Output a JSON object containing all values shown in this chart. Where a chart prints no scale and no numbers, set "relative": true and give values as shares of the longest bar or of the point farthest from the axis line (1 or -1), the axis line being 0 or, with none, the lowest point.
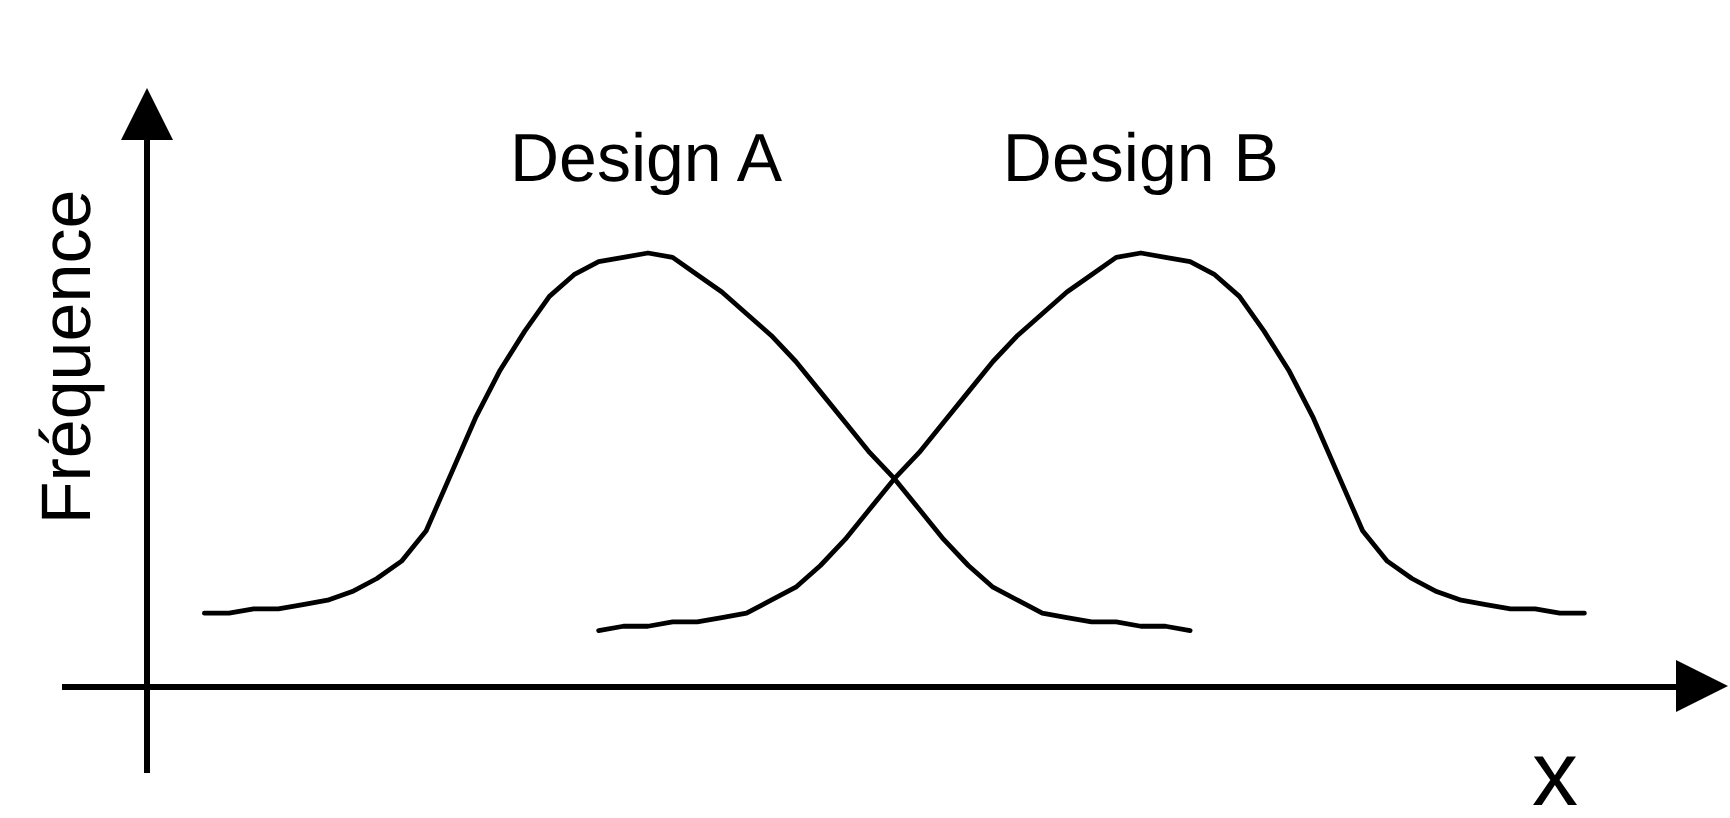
{
  "chart_data": {
    "type": "line",
    "relative": true,
    "tick_labels": false,
    "xlabel": "x",
    "ylabel": "Fréquence",
    "categories": [
      null,
      null,
      null,
      null,
      null,
      null,
      null,
      null,
      null,
      null,
      null,
      null,
      null,
      null,
      null,
      null,
      null,
      null,
      null,
      null,
      null,
      null,
      null,
      null,
      null,
      null,
      null,
      null,
      null,
      null,
      null,
      null,
      null,
      null,
      null,
      null,
      null,
      null,
      null,
      null,
      null,
      null,
      null,
      null,
      null,
      null,
      null,
      null,
      null,
      null,
      null,
      null,
      null,
      null,
      null,
      null,
      null
    ],
    "series": [
      {
        "name": "Design A",
        "color": "#000000",
        "values": [
          0.17,
          0.17,
          0.18,
          0.18,
          0.19,
          0.2,
          0.22,
          0.25,
          0.29,
          0.36,
          0.49,
          0.62,
          0.73,
          0.82,
          0.9,
          0.95,
          0.98,
          0.99,
          1,
          0.99,
          0.95,
          0.91,
          0.86,
          0.81,
          0.75,
          0.68,
          0.61,
          0.54,
          0.48,
          0.41,
          0.34,
          0.28,
          0.23,
          0.2,
          0.17,
          0.16,
          0.15,
          0.15,
          0.14,
          0.14,
          0.13,
          null,
          null,
          null,
          null,
          null,
          null,
          null,
          null,
          null,
          null,
          null,
          null,
          null,
          null,
          null,
          null
        ]
      },
      {
        "name": "Design B",
        "color": "#000000",
        "values": [
          null,
          null,
          null,
          null,
          null,
          null,
          null,
          null,
          null,
          null,
          null,
          null,
          null,
          null,
          null,
          null,
          0.13,
          0.14,
          0.14,
          0.15,
          0.15,
          0.16,
          0.17,
          0.2,
          0.23,
          0.28,
          0.34,
          0.41,
          0.48,
          0.54,
          0.61,
          0.68,
          0.75,
          0.81,
          0.86,
          0.91,
          0.95,
          0.99,
          1,
          0.99,
          0.98,
          0.95,
          0.9,
          0.82,
          0.73,
          0.62,
          0.49,
          0.36,
          0.29,
          0.25,
          0.22,
          0.2,
          0.19,
          0.18,
          0.18,
          0.17,
          0.17
        ]
      }
    ]
  }
}
